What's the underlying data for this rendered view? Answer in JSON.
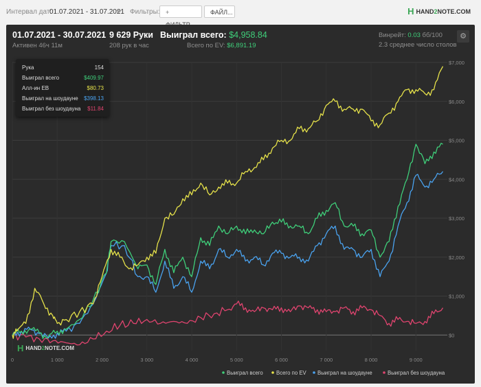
{
  "topbar": {
    "interval_label": "Интервал дат:",
    "interval_value": "01.07.2021 - 31.07.2021",
    "filters_label": "Фильтры:",
    "filter_button": "ФИЛЬТР...",
    "file_button": "ФАЙЛ...",
    "logo_pre": "HAND",
    "logo_two": "2",
    "logo_post": "NOTE.COM"
  },
  "summary": {
    "date_range": "01.07.2021 - 30.07.2021",
    "active": "Активен 46ч 11м",
    "hands": "9 629 Руки",
    "hands_per_hour": "208 рук в час",
    "won_total_label": "Выиграл всего:",
    "won_total_value": "$4,958.84",
    "ev_label": "Всего по EV:",
    "ev_value": "$6,891.19",
    "winrate_label": "Винрейт:",
    "winrate_value": "0.03",
    "winrate_unit": "бб/100",
    "tables_text": "2.3 среднее число столов"
  },
  "tooltip": {
    "rows": [
      {
        "label": "Рука",
        "value": "154",
        "color": "#dddddd"
      },
      {
        "label": "Выиграл всего",
        "value": "$409.97",
        "color": "#3fcf7a"
      },
      {
        "label": "Алл-ин EB",
        "value": "$80.73",
        "color": "#e6e24a"
      },
      {
        "label": "Выиграл на шоудауне",
        "value": "$398.13",
        "color": "#4aa3f0"
      },
      {
        "label": "Выиграл без шоудауна",
        "value": "$11.84",
        "color": "#e0446f"
      }
    ]
  },
  "watermark": {
    "pre": "HAND",
    "two": "2",
    "post": "NOTE.COM"
  },
  "chart_data": {
    "type": "line",
    "x_ticks": [
      "0",
      "1 000",
      "2 000",
      "3 000",
      "4 000",
      "5 000",
      "6 000",
      "7 000",
      "8 000",
      "9 000"
    ],
    "y_ticks": [
      "$0",
      "$1,000",
      "$2,000",
      "$3,000",
      "$4,000",
      "$5,000",
      "$6,000",
      "$7,000"
    ],
    "xlim": [
      0,
      9700
    ],
    "ylim": [
      -400,
      7000
    ],
    "grid": true,
    "legend_position": "bottom-right",
    "series": [
      {
        "name": "Выиграл всего",
        "color": "#3fcf7a",
        "x": [
          0,
          200,
          400,
          600,
          800,
          1000,
          1200,
          1500,
          1800,
          2100,
          2200,
          2500,
          2800,
          3000,
          3200,
          3400,
          3600,
          3800,
          4000,
          4200,
          4400,
          4600,
          4800,
          5000,
          5200,
          5400,
          5600,
          5800,
          6000,
          6200,
          6400,
          6600,
          6800,
          7000,
          7200,
          7400,
          7600,
          7800,
          8000,
          8200,
          8400,
          8600,
          8800,
          9000,
          9200,
          9400,
          9600
        ],
        "y": [
          0,
          100,
          150,
          60,
          -50,
          100,
          150,
          400,
          900,
          1600,
          2400,
          2400,
          1700,
          1800,
          1300,
          2200,
          1600,
          2000,
          1500,
          2500,
          2300,
          2800,
          2600,
          2800,
          2600,
          2700,
          2600,
          2900,
          2900,
          2800,
          2800,
          2600,
          3000,
          3200,
          3400,
          2800,
          2800,
          2600,
          2700,
          2000,
          2400,
          3300,
          4000,
          4900,
          4400,
          4700,
          4900
        ]
      },
      {
        "name": "Всего по EV",
        "color": "#e6e24a",
        "x": [
          0,
          100,
          300,
          500,
          700,
          900,
          1000,
          1200,
          1500,
          1800,
          2000,
          2200,
          2400,
          2600,
          2800,
          3000,
          3200,
          3400,
          3600,
          3800,
          4000,
          4200,
          4400,
          4600,
          4800,
          5000,
          5200,
          5400,
          5600,
          5800,
          6000,
          6200,
          6400,
          6600,
          6800,
          7000,
          7200,
          7400,
          7600,
          7800,
          8000,
          8200,
          8400,
          8600,
          8800,
          9000,
          9200,
          9400,
          9600
        ],
        "y": [
          0,
          100,
          300,
          1200,
          800,
          500,
          300,
          400,
          600,
          800,
          1500,
          2200,
          2000,
          1700,
          1800,
          2000,
          2100,
          3000,
          3100,
          3500,
          3600,
          3900,
          3600,
          3800,
          3900,
          3900,
          4200,
          4300,
          4500,
          4800,
          5000,
          5000,
          5300,
          5300,
          5500,
          5900,
          6000,
          5800,
          5800,
          5800,
          5500,
          5400,
          5700,
          6000,
          6300,
          6300,
          6200,
          6300,
          6900
        ]
      },
      {
        "name": "Выиграл на шоудауне",
        "color": "#4aa3f0",
        "x": [
          0,
          200,
          400,
          600,
          800,
          1000,
          1200,
          1500,
          1800,
          2100,
          2200,
          2500,
          2800,
          3000,
          3200,
          3400,
          3600,
          3800,
          4000,
          4200,
          4400,
          4600,
          4800,
          5000,
          5200,
          5400,
          5600,
          5800,
          6000,
          6200,
          6400,
          6600,
          6800,
          7000,
          7200,
          7400,
          7600,
          7800,
          8000,
          8200,
          8400,
          8600,
          8800,
          9000,
          9200,
          9400,
          9600
        ],
        "y": [
          0,
          100,
          150,
          40,
          -80,
          50,
          100,
          300,
          800,
          1600,
          2300,
          2300,
          1500,
          1500,
          1100,
          1900,
          1200,
          1500,
          1100,
          1900,
          1700,
          2200,
          2000,
          2200,
          1900,
          2000,
          1800,
          2100,
          2100,
          2000,
          2000,
          1900,
          2300,
          2600,
          2800,
          2200,
          2200,
          2000,
          2200,
          1500,
          1900,
          2800,
          3400,
          4100,
          3800,
          4000,
          4200
        ]
      },
      {
        "name": "Выиграл без шоудауна",
        "color": "#e0446f",
        "x": [
          0,
          300,
          600,
          900,
          1200,
          1500,
          1800,
          2100,
          2400,
          2700,
          3000,
          3300,
          3600,
          3900,
          4200,
          4500,
          4800,
          5000,
          5200,
          5400,
          5600,
          5800,
          6000,
          6200,
          6400,
          6600,
          6800,
          7000,
          7200,
          7400,
          7600,
          7800,
          8000,
          8200,
          8400,
          8600,
          8800,
          9000,
          9200,
          9400,
          9600
        ],
        "y": [
          0,
          -50,
          -100,
          -150,
          -200,
          -250,
          -100,
          100,
          250,
          300,
          400,
          300,
          350,
          300,
          450,
          550,
          650,
          800,
          700,
          600,
          700,
          650,
          700,
          600,
          750,
          700,
          650,
          600,
          600,
          700,
          600,
          700,
          650,
          500,
          300,
          400,
          350,
          300,
          350,
          550,
          700
        ]
      }
    ]
  }
}
